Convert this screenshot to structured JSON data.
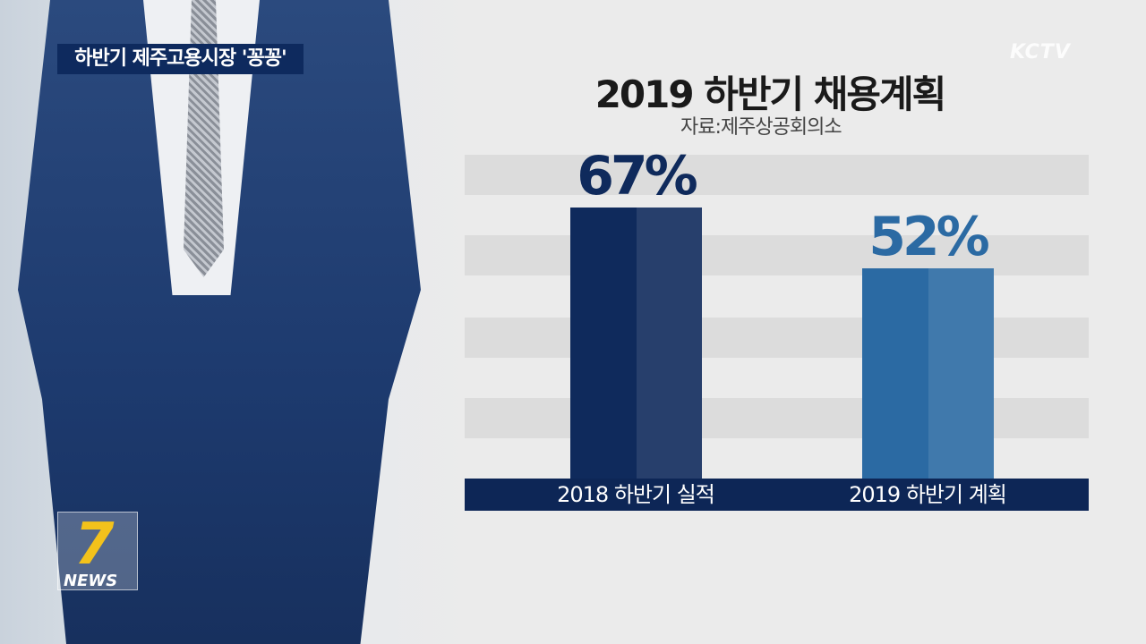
{
  "caption": "하반기 제주고용시장 '꽁꽁'",
  "channel_logo": "KCTV",
  "news_logo": {
    "number": "7",
    "text": "NEWS"
  },
  "chart_data": {
    "type": "bar",
    "title": "2019 하반기 채용계획",
    "source": "자료:제주상공회의소",
    "categories": [
      "2018 하반기 실적",
      "2019 하반기 계획"
    ],
    "values": [
      67,
      52
    ],
    "value_labels": [
      "67%",
      "52%"
    ],
    "unit": "%",
    "colors": [
      "#0f2a5c",
      "#2b6aa3"
    ],
    "label_colors": [
      "#0f2a5c",
      "#2b6aa3"
    ],
    "grid": true
  }
}
